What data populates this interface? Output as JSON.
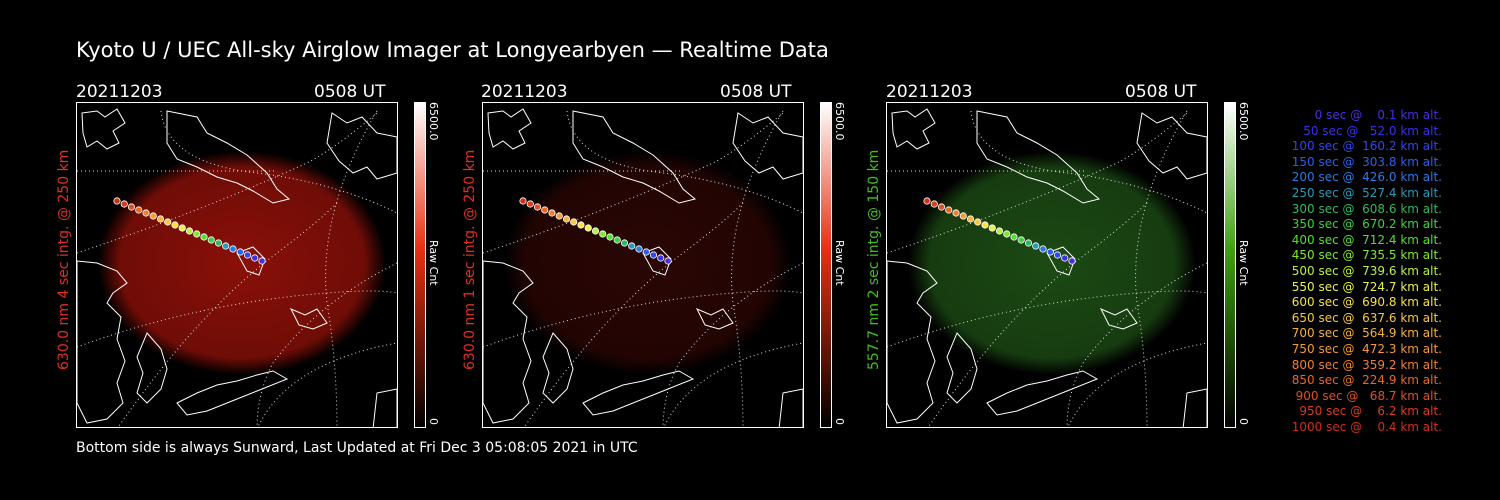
{
  "title": "Kyoto U / UEC All-sky Airglow Imager at Longyearbyen — Realtime Data",
  "footer": "Bottom side is always Sunward, Last Updated at Fri Dec  3 05:08:05 2021 in UTC",
  "panels": [
    {
      "date": "20211203",
      "time": "0508 UT",
      "label": "630.0 nm 4 sec intg. @ 250 km",
      "label_color": "#e03020",
      "glow_color": "#8a1008",
      "cbar_top": "#e83010",
      "cbar_max": "6500.0",
      "cbar_min": "0",
      "cbar_unit": "Raw Cnt"
    },
    {
      "date": "20211203",
      "time": "0508 UT",
      "label": "630.0 nm 1 sec intg. @ 250 km",
      "label_color": "#e03020",
      "glow_color": "#2a0604",
      "cbar_top": "#e83010",
      "cbar_max": "6500.0",
      "cbar_min": "0",
      "cbar_unit": "Raw Cnt"
    },
    {
      "date": "20211203",
      "time": "0508 UT",
      "label": "557.7 nm 2 sec intg. @ 150 km",
      "label_color": "#40c020",
      "glow_color": "#1c4a14",
      "cbar_top": "#40a010",
      "cbar_max": "6500.0",
      "cbar_min": "0",
      "cbar_unit": "Raw Cnt"
    }
  ],
  "legend": [
    {
      "text": "   0 sec @    0.1 km alt.",
      "color": "#4a2ee0"
    },
    {
      "text": "  50 sec @   52.0 km alt.",
      "color": "#3a30f0"
    },
    {
      "text": " 100 sec @  160.2 km alt.",
      "color": "#2e48f0"
    },
    {
      "text": " 150 sec @  303.8 km alt.",
      "color": "#2a60f0"
    },
    {
      "text": " 200 sec @  426.0 km alt.",
      "color": "#2a7ae0"
    },
    {
      "text": " 250 sec @  527.4 km alt.",
      "color": "#2a9ab8"
    },
    {
      "text": " 300 sec @  608.6 km alt.",
      "color": "#30b860"
    },
    {
      "text": " 350 sec @  670.2 km alt.",
      "color": "#40d040"
    },
    {
      "text": " 400 sec @  712.4 km alt.",
      "color": "#50e030"
    },
    {
      "text": " 450 sec @  735.5 km alt.",
      "color": "#80e830"
    },
    {
      "text": " 500 sec @  739.6 km alt.",
      "color": "#b8f040"
    },
    {
      "text": " 550 sec @  724.7 km alt.",
      "color": "#e8f050"
    },
    {
      "text": " 600 sec @  690.8 km alt.",
      "color": "#f8e040"
    },
    {
      "text": " 650 sec @  637.6 km alt.",
      "color": "#f8c840"
    },
    {
      "text": " 700 sec @  564.9 km alt.",
      "color": "#f8b040"
    },
    {
      "text": " 750 sec @  472.3 km alt.",
      "color": "#f89838"
    },
    {
      "text": " 800 sec @  359.2 km alt.",
      "color": "#f08030"
    },
    {
      "text": " 850 sec @  224.9 km alt.",
      "color": "#e86828"
    },
    {
      "text": " 900 sec @   68.7 km alt.",
      "color": "#e05020"
    },
    {
      "text": " 950 sec @    6.2 km alt.",
      "color": "#d83c1c"
    },
    {
      "text": "1000 sec @    0.4 km alt.",
      "color": "#d03018"
    }
  ]
}
